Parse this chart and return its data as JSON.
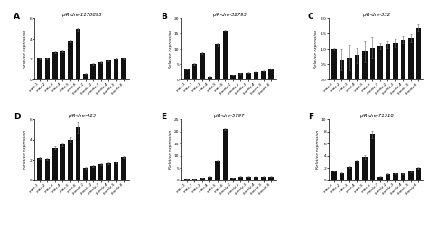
{
  "panels": [
    {
      "label": "A",
      "title": "piR-dre-1170893",
      "xlabels": [
        "male-1",
        "male-2",
        "male-3",
        "male-4",
        "male-5",
        "male-6",
        "female-1",
        "female-2",
        "female-3",
        "female-4",
        "female-5",
        "female-6"
      ],
      "values": [
        2.1,
        2.1,
        2.7,
        2.8,
        3.8,
        4.95,
        0.55,
        1.5,
        1.7,
        1.85,
        2.05,
        2.1
      ],
      "errors": [
        0.05,
        0.05,
        0.1,
        0.1,
        0.15,
        0.12,
        0.05,
        0.07,
        0.08,
        0.08,
        0.09,
        0.08
      ],
      "ylim": [
        0,
        6
      ],
      "yticks": [
        0,
        2,
        4,
        6
      ]
    },
    {
      "label": "B",
      "title": "piR-dre-32793",
      "xlabels": [
        "male-1",
        "male-2",
        "male-3",
        "male-4",
        "male-5",
        "male-6",
        "female-1",
        "female-2",
        "female-3",
        "female-4",
        "female-5",
        "female-6"
      ],
      "values": [
        3.5,
        5.0,
        8.5,
        1.0,
        11.5,
        16.0,
        1.5,
        2.0,
        2.2,
        2.5,
        2.8,
        3.5
      ],
      "errors": [
        0.2,
        0.25,
        0.3,
        0.1,
        0.4,
        0.35,
        0.1,
        0.1,
        0.1,
        0.1,
        0.12,
        0.15
      ],
      "ylim": [
        0,
        20
      ],
      "yticks": [
        0,
        5,
        10,
        15,
        20
      ]
    },
    {
      "label": "C",
      "title": "piR-dre-332",
      "xlabels": [
        "male-1",
        "male-2",
        "male-3",
        "male-4",
        "male-5",
        "male-6",
        "female-1",
        "female-2",
        "female-3",
        "female-4",
        "female-5",
        "female-6"
      ],
      "values": [
        1.0,
        0.65,
        0.72,
        0.8,
        0.92,
        1.05,
        1.1,
        1.15,
        1.2,
        1.3,
        1.35,
        1.7
      ],
      "errors": [
        0.05,
        0.35,
        0.42,
        0.25,
        0.35,
        0.35,
        0.1,
        0.12,
        0.12,
        0.12,
        0.12,
        0.1
      ],
      "ylim": [
        0,
        2
      ],
      "yticks": [
        0,
        0.5,
        1.0,
        1.5,
        2.0
      ]
    },
    {
      "label": "D",
      "title": "piR-dre-423",
      "xlabels": [
        "male-1",
        "male-2",
        "male-3",
        "male-4",
        "male-5",
        "male-6",
        "female-1",
        "female-2",
        "female-3",
        "female-4",
        "female-5",
        "female-6"
      ],
      "values": [
        2.2,
        2.1,
        3.2,
        3.5,
        4.0,
        5.2,
        1.2,
        1.4,
        1.6,
        1.65,
        1.75,
        2.3
      ],
      "errors": [
        0.1,
        0.1,
        0.15,
        0.15,
        0.2,
        0.5,
        0.08,
        0.08,
        0.08,
        0.08,
        0.08,
        0.1
      ],
      "ylim": [
        0,
        6
      ],
      "yticks": [
        0,
        2,
        4,
        6
      ]
    },
    {
      "label": "E",
      "title": "piR-dre-5797",
      "xlabels": [
        "male-1",
        "male-2",
        "male-3",
        "male-4",
        "male-5",
        "male-6",
        "female-1",
        "female-2",
        "female-3",
        "female-4",
        "female-5",
        "female-6"
      ],
      "values": [
        0.5,
        0.6,
        1.0,
        1.5,
        8.0,
        21.0,
        1.0,
        1.5,
        1.5,
        1.5,
        1.5,
        1.5
      ],
      "errors": [
        0.05,
        0.05,
        0.05,
        0.1,
        0.5,
        0.4,
        0.08,
        0.08,
        0.08,
        0.08,
        0.08,
        0.08
      ],
      "ylim": [
        0,
        25
      ],
      "yticks": [
        0,
        5,
        10,
        15,
        20,
        25
      ]
    },
    {
      "label": "F",
      "title": "piR-dre-71318",
      "xlabels": [
        "male-1",
        "male-2",
        "male-3",
        "male-4",
        "male-5",
        "male-6",
        "female-1",
        "female-2",
        "female-3",
        "female-4",
        "female-5",
        "female-6"
      ],
      "values": [
        1.5,
        1.2,
        2.2,
        3.2,
        3.8,
        7.5,
        0.6,
        1.0,
        1.1,
        1.1,
        1.5,
        2.0
      ],
      "errors": [
        0.1,
        0.1,
        0.15,
        0.2,
        0.25,
        0.6,
        0.08,
        0.08,
        0.08,
        0.08,
        0.15,
        0.15
      ],
      "ylim": [
        0,
        10
      ],
      "yticks": [
        0,
        2,
        4,
        6,
        8,
        10
      ]
    }
  ],
  "bar_color": "#111111",
  "error_color": "#666666",
  "ylabel": "Relative expression",
  "bg_color": "#ffffff"
}
